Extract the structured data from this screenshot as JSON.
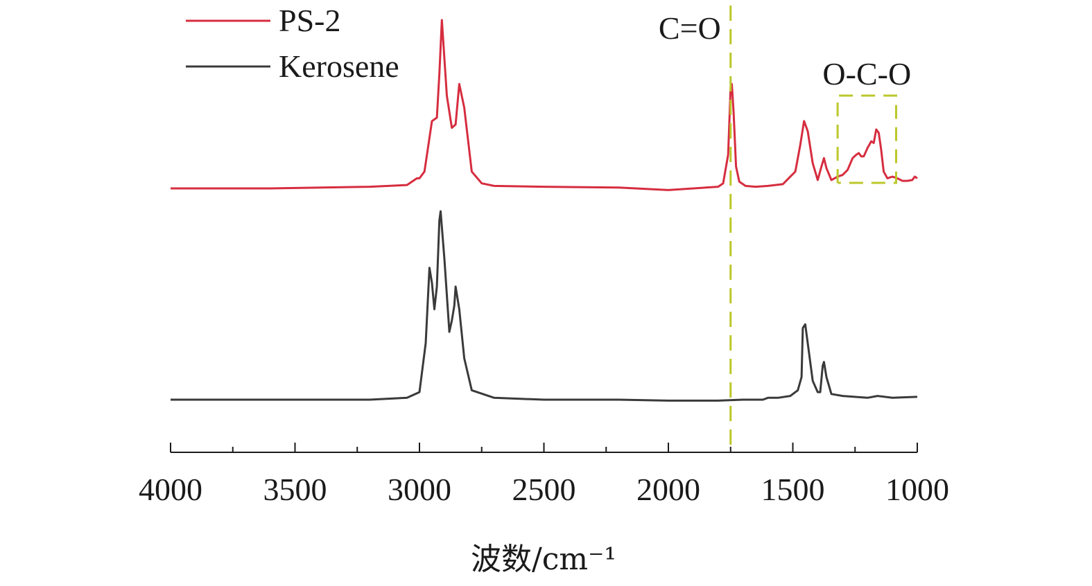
{
  "chart_data": {
    "type": "line",
    "xlabel": "波数/cm⁻¹",
    "xlim": [
      4000,
      1000
    ],
    "x_reversed": true,
    "x_ticks": [
      "4000",
      "3500",
      "3000",
      "2500",
      "2000",
      "1500",
      "1000"
    ],
    "x_minor_tick_step": 250,
    "grid": false,
    "legend_position": "top-left",
    "series": [
      {
        "name": "PS-2",
        "color": "#d62d3f",
        "x": [
          4000,
          3600,
          3200,
          3050,
          3010,
          3000,
          2980,
          2960,
          2950,
          2930,
          2920,
          2910,
          2890,
          2870,
          2855,
          2840,
          2820,
          2790,
          2750,
          2700,
          2500,
          2200,
          2000,
          1900,
          1800,
          1780,
          1760,
          1750,
          1745,
          1738,
          1728,
          1715,
          1690,
          1650,
          1600,
          1540,
          1490,
          1470,
          1455,
          1440,
          1420,
          1400,
          1385,
          1375,
          1365,
          1345,
          1320,
          1300,
          1280,
          1260,
          1245,
          1235,
          1225,
          1215,
          1200,
          1185,
          1175,
          1165,
          1155,
          1145,
          1135,
          1120,
          1100,
          1080,
          1060,
          1040,
          1020,
          1010,
          1000
        ],
        "y": [
          0.0,
          0.0,
          0.01,
          0.02,
          0.06,
          0.06,
          0.1,
          0.3,
          0.4,
          0.42,
          0.68,
          1.0,
          0.55,
          0.36,
          0.38,
          0.62,
          0.48,
          0.1,
          0.03,
          0.015,
          0.01,
          0.005,
          -0.01,
          0.0,
          0.01,
          0.03,
          0.2,
          0.6,
          0.62,
          0.45,
          0.13,
          0.04,
          0.015,
          0.01,
          0.015,
          0.025,
          0.1,
          0.26,
          0.4,
          0.34,
          0.15,
          0.05,
          0.13,
          0.18,
          0.12,
          0.05,
          0.07,
          0.08,
          0.11,
          0.18,
          0.2,
          0.21,
          0.19,
          0.19,
          0.24,
          0.28,
          0.27,
          0.35,
          0.33,
          0.23,
          0.1,
          0.06,
          0.07,
          0.06,
          0.045,
          0.045,
          0.05,
          0.07,
          0.06
        ]
      },
      {
        "name": "Kerosene",
        "color": "#3a3a3a",
        "x": [
          4000,
          3600,
          3200,
          3050,
          3000,
          2975,
          2960,
          2950,
          2940,
          2930,
          2920,
          2915,
          2900,
          2880,
          2870,
          2860,
          2855,
          2840,
          2820,
          2790,
          2700,
          2500,
          2200,
          2000,
          1800,
          1700,
          1620,
          1600,
          1560,
          1510,
          1480,
          1465,
          1460,
          1450,
          1440,
          1420,
          1400,
          1390,
          1380,
          1375,
          1365,
          1345,
          1300,
          1200,
          1160,
          1100,
          1000
        ],
        "y": [
          0.0,
          0.0,
          0.0,
          0.01,
          0.04,
          0.3,
          0.7,
          0.62,
          0.48,
          0.6,
          0.95,
          1.0,
          0.75,
          0.36,
          0.42,
          0.5,
          0.6,
          0.48,
          0.22,
          0.05,
          0.01,
          0.0,
          0.0,
          -0.005,
          -0.005,
          0.0,
          0.0,
          0.01,
          0.01,
          0.02,
          0.05,
          0.12,
          0.38,
          0.4,
          0.3,
          0.1,
          0.04,
          0.04,
          0.18,
          0.2,
          0.12,
          0.03,
          0.02,
          0.01,
          0.02,
          0.01,
          0.015
        ]
      }
    ],
    "annotations": [
      {
        "label": "C=O",
        "type": "vertical-dashed-line",
        "x": 1750,
        "color": "#bcc72a"
      },
      {
        "label": "O-C-O",
        "type": "dashed-bracket",
        "x_range": [
          1320,
          1085
        ],
        "color": "#bcc72a"
      }
    ]
  }
}
